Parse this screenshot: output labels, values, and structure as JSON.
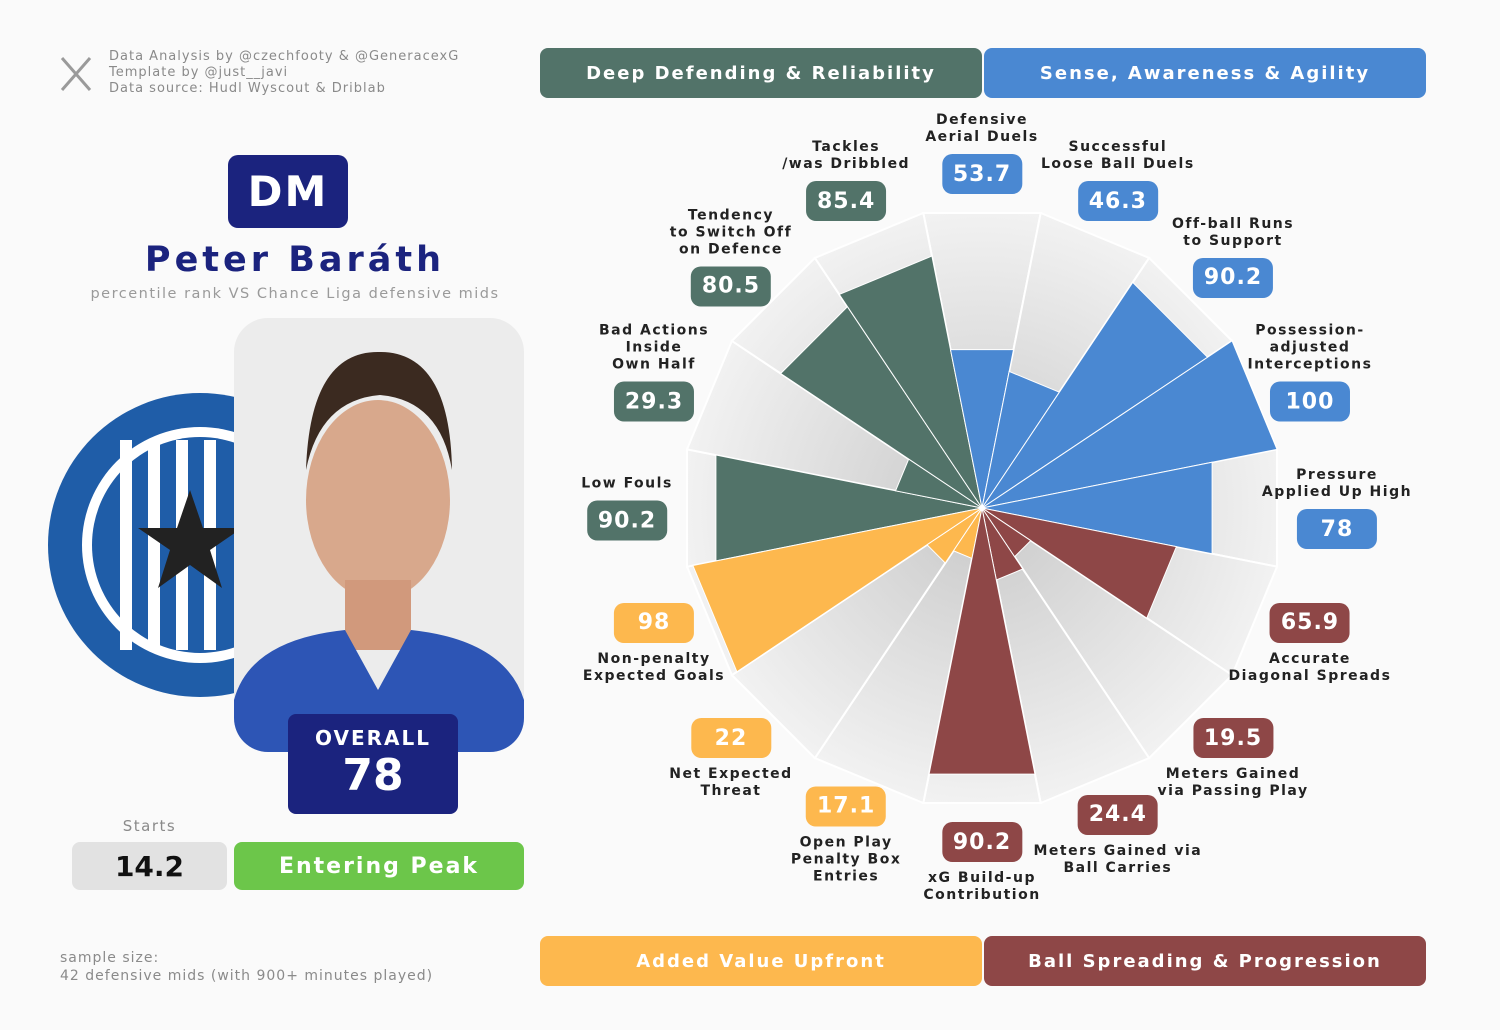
{
  "credits": [
    "Data Analysis by @czechfooty & @GeneracexG",
    "Template by @just__javi",
    "Data source: Hudl Wyscout & Driblab"
  ],
  "position": "DM",
  "player": "Peter Baráth",
  "subtitle": "percentile rank VS Chance Liga defensive mids",
  "overall_label": "OVERALL",
  "overall": 78,
  "starts_label": "Starts",
  "starts": 14.2,
  "status": "Entering Peak",
  "sample_size": [
    "sample size:",
    "42 defensive mids (with 900+ minutes played)"
  ],
  "chart_data": {
    "type": "polar-bar",
    "categories": [
      "Defensive\nAerial Duels",
      "Successful\nLoose Ball Duels",
      "Off-ball Runs\nto Support",
      "Possession-adjusted\nInterceptions",
      "Pressure\nApplied Up High",
      "Accurate\nDiagonal Spreads",
      "Meters Gained\nvia Passing Play",
      "Meters Gained via\nBall Carries",
      "xG Build-up\nContribution",
      "Open Play\nPenalty Box\nEntries",
      "Net Expected\nThreat",
      "Non-penalty\nExpected Goals",
      "Low Fouls",
      "Bad Actions\nInside\nOwn Half",
      "Tendency\nto Switch Off\non Defence",
      "Tackles\n/was Dribbled"
    ],
    "series": [
      {
        "name": "Deep Defending & Reliability",
        "color": "#527369",
        "values": [
          null,
          null,
          null,
          null,
          null,
          null,
          null,
          null,
          null,
          null,
          null,
          null,
          90.2,
          29.3,
          80.5,
          85.4
        ]
      },
      {
        "name": "Sense, Awareness & Agility",
        "color": "#4a88d2",
        "values": [
          53.7,
          46.3,
          90.2,
          100,
          78,
          null,
          null,
          null,
          null,
          null,
          null,
          null,
          null,
          null,
          null,
          null
        ]
      },
      {
        "name": "Added Value Upfront",
        "color": "#fdb84e",
        "values": [
          null,
          null,
          null,
          null,
          null,
          null,
          null,
          null,
          null,
          17.1,
          22,
          98,
          null,
          null,
          null,
          null
        ]
      },
      {
        "name": "Ball Spreading & Progression",
        "color": "#8e4747",
        "values": [
          null,
          null,
          null,
          null,
          null,
          65.9,
          19.5,
          24.4,
          90.2,
          null,
          null,
          null,
          null,
          null,
          null,
          null
        ]
      }
    ],
    "ylim": [
      0,
      100
    ]
  }
}
